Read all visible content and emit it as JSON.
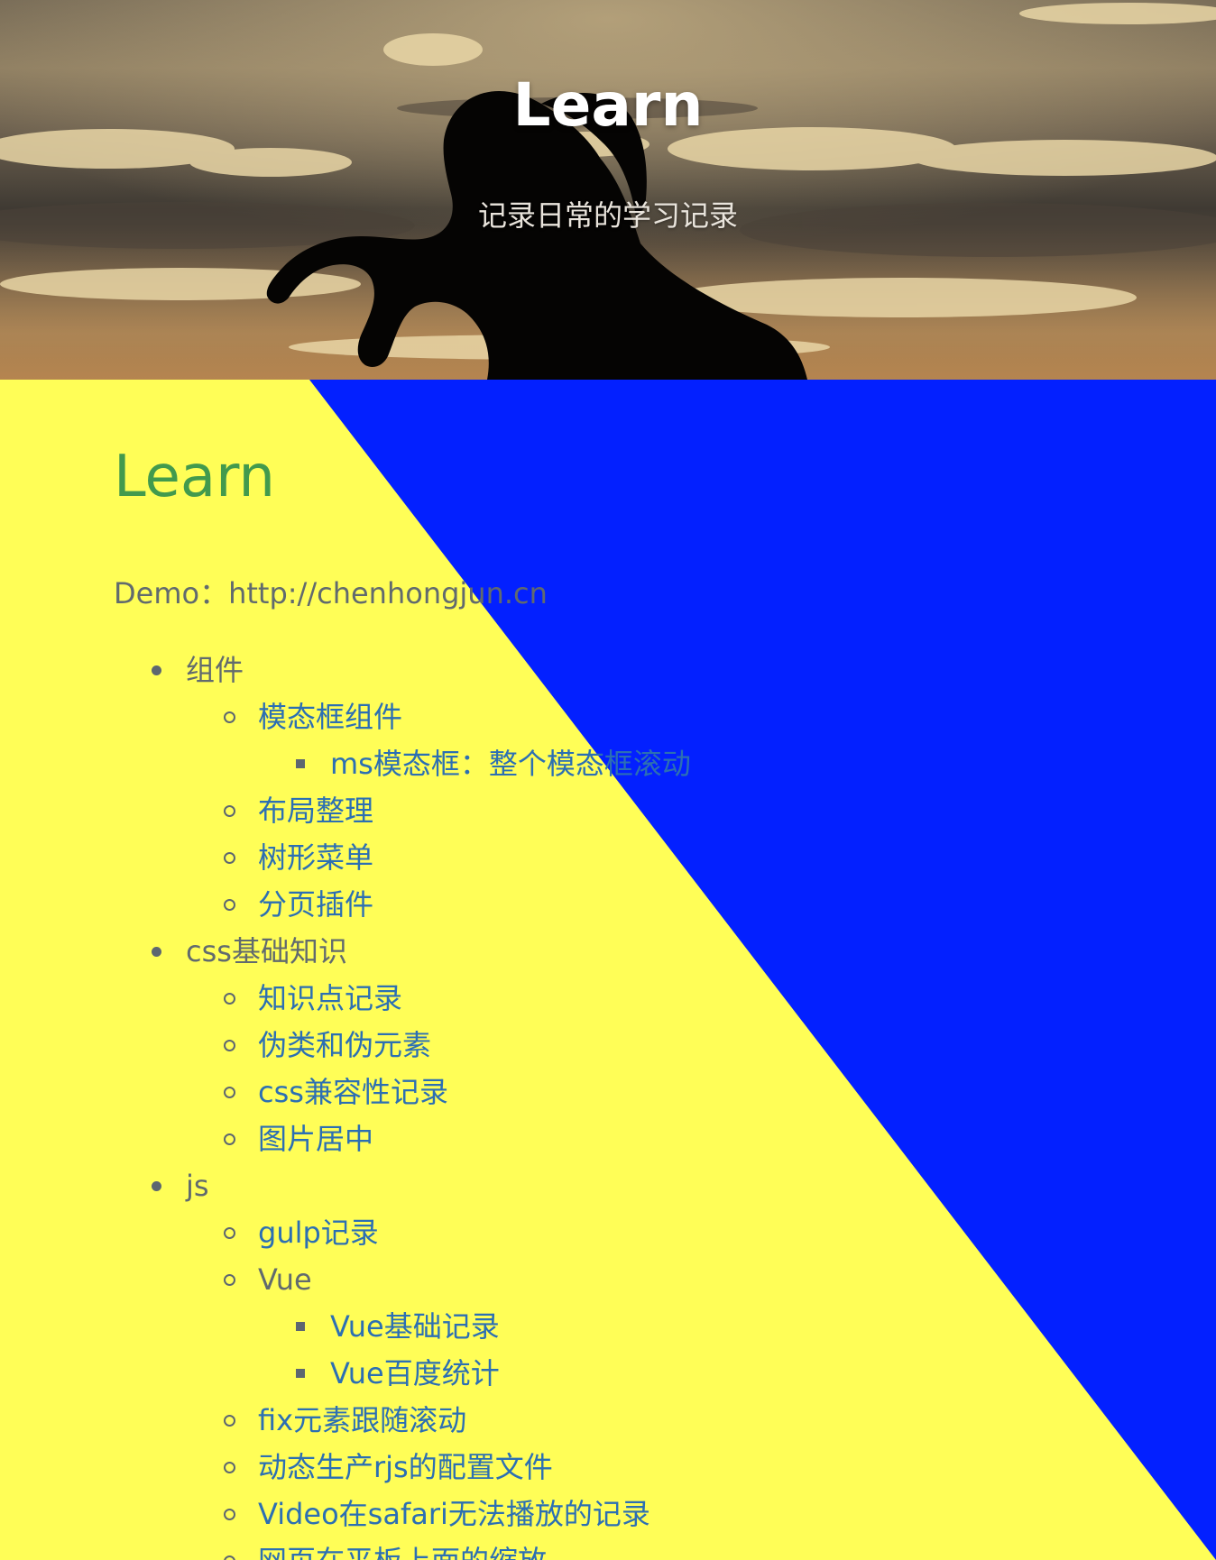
{
  "header": {
    "title": "Learn",
    "subtitle": "记录日常的学习记录"
  },
  "colors": {
    "content_left": "#fffe57",
    "content_right": "#0320ff",
    "title_green": "#429a4d",
    "link_blue": "#2c6fb3",
    "text_gray": "#616a6e"
  },
  "main": {
    "title": "Learn",
    "demo": "Demo：http://chenhongjun.cn",
    "sections": {
      "components": {
        "label": "组件",
        "items": {
          "modal": "模态框组件",
          "modal_ms": "ms模态框：整个模态框滚动",
          "layout": "布局整理",
          "tree_menu": "树形菜单",
          "pagination": "分页插件"
        }
      },
      "css": {
        "label": "css基础知识",
        "items": {
          "notes": "知识点记录",
          "pseudo": "伪类和伪元素",
          "compat": "css兼容性记录",
          "img_center": "图片居中"
        }
      },
      "js": {
        "label": "js",
        "items": {
          "gulp": "gulp记录",
          "vue": "Vue",
          "vue_basic": "Vue基础记录",
          "vue_baidu": "Vue百度统计",
          "fix_scroll": "fix元素跟随滚动",
          "rjs_config": "动态生产rjs的配置文件",
          "video_safari": "Video在safari无法播放的记录",
          "tablet_zoom": "网页在平板上面的缩放"
        }
      }
    }
  }
}
